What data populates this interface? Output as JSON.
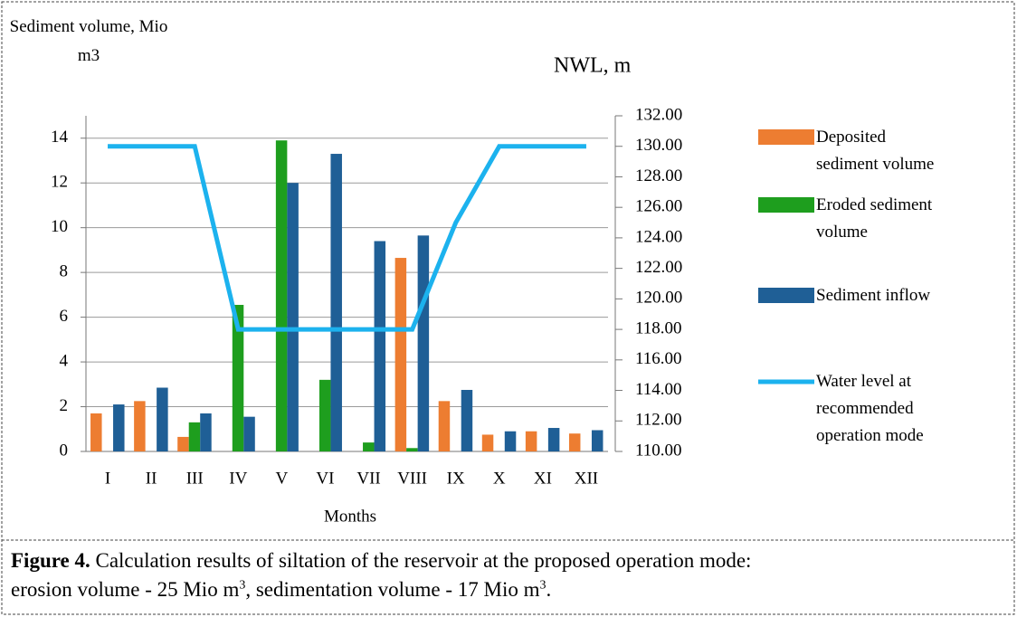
{
  "chart_data": {
    "type": "bar",
    "ylabel": "Sediment volume, Mio m3",
    "y2label": "NWL, m",
    "xlabel": "Months",
    "categories": [
      "I",
      "II",
      "III",
      "IV",
      "V",
      "VI",
      "VII",
      "VIII",
      "IX",
      "X",
      "XI",
      "XII"
    ],
    "series": [
      {
        "name": "Deposited sediment volume",
        "type": "bar",
        "color": "#ed7d31",
        "values": [
          1.7,
          2.25,
          0.65,
          0,
          0,
          0,
          0,
          8.65,
          2.25,
          0.75,
          0.9,
          0.8
        ]
      },
      {
        "name": "Eroded sediment volume",
        "type": "bar",
        "color": "#1e9e1e",
        "values": [
          0,
          0,
          1.3,
          6.55,
          13.9,
          3.2,
          0.4,
          0.15,
          0,
          0,
          0,
          0
        ]
      },
      {
        "name": "Sediment inflow",
        "type": "bar",
        "color": "#1f5f96",
        "values": [
          2.1,
          2.85,
          1.7,
          1.55,
          12.0,
          13.3,
          9.4,
          9.65,
          2.75,
          0.9,
          1.05,
          0.95
        ]
      },
      {
        "name": "Water level at recommended operation mode",
        "type": "line",
        "axis": "y2",
        "color": "#1cb2ee",
        "values": [
          130,
          130,
          130,
          118,
          118,
          118,
          118,
          118,
          125,
          130,
          130,
          130
        ]
      }
    ],
    "ylim": [
      0,
      15
    ],
    "yticks": [
      0,
      2,
      4,
      6,
      8,
      10,
      12,
      14
    ],
    "y2lim": [
      110,
      132
    ],
    "y2ticks": [
      {
        "value": 110,
        "label": "110.00"
      },
      {
        "value": 112,
        "label": "112.00"
      },
      {
        "value": 114,
        "label": "114.00"
      },
      {
        "value": 116,
        "label": "116.00"
      },
      {
        "value": 118,
        "label": "118.00"
      },
      {
        "value": 120,
        "label": "120.00"
      },
      {
        "value": 122,
        "label": "122.00"
      },
      {
        "value": 124,
        "label": "124.00"
      },
      {
        "value": 126,
        "label": "126.00"
      },
      {
        "value": 128,
        "label": "128.00"
      },
      {
        "value": 130,
        "label": "130.00"
      },
      {
        "value": 132,
        "label": "132.00"
      }
    ],
    "grid": true,
    "legend": "right"
  },
  "caption": {
    "label": "Figure 4.",
    "parts": [
      "Calculation results of siltation of the reservoir at the proposed operation mode:",
      "erosion volume - 25 Mio m",
      "3",
      ", sedimentation volume - 17 Mio m",
      "3",
      "."
    ]
  }
}
